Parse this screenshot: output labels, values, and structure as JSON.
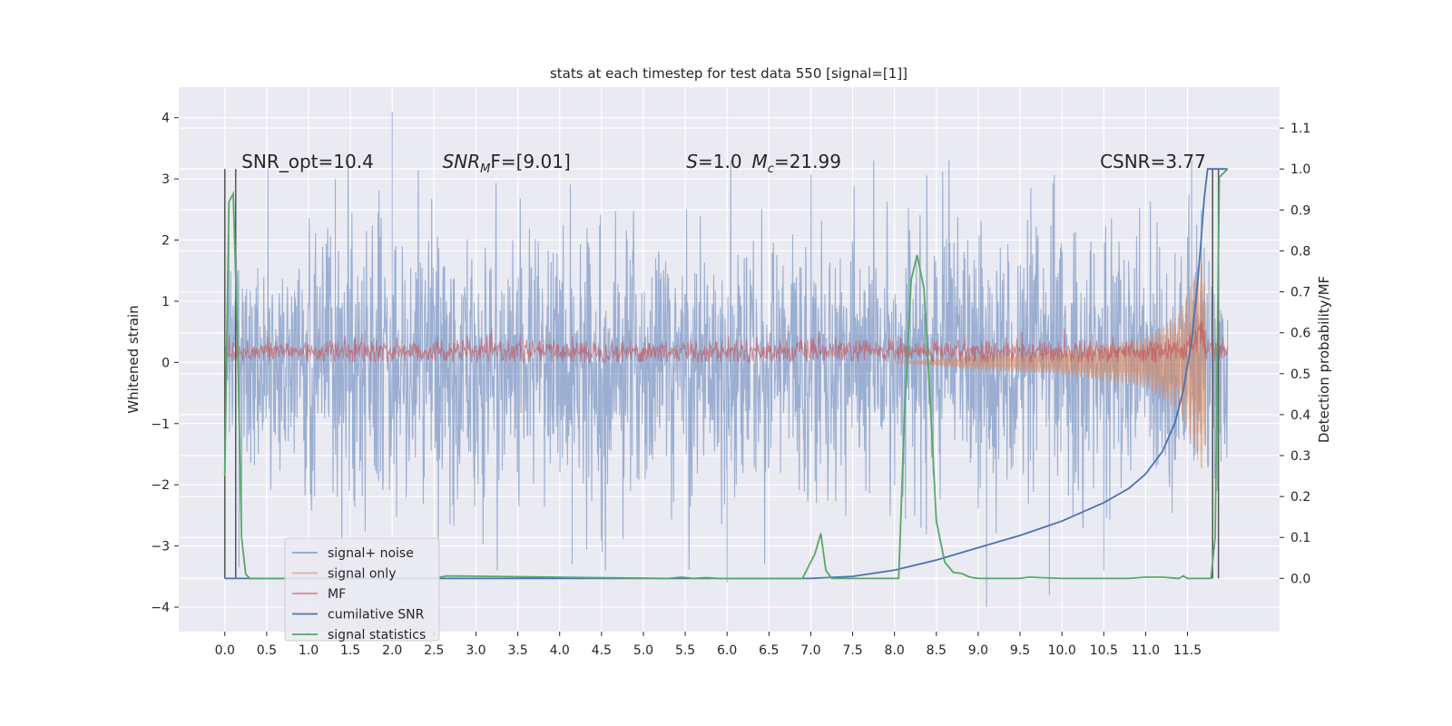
{
  "chart_data": {
    "type": "line",
    "title": "stats at each timestep for test data 550 [signal=[1]]",
    "ylabel": "Whitened strain",
    "y2label": "Detection probability/MF",
    "xlim": [
      -0.55,
      12.6
    ],
    "ylim": [
      -4.4,
      4.5
    ],
    "y2lim": [
      -0.13,
      1.2
    ],
    "x_ticks": [
      0,
      0.5,
      1,
      1.5,
      2,
      2.5,
      3,
      3.5,
      4,
      4.5,
      5,
      5.5,
      6,
      6.5,
      7,
      7.5,
      8,
      8.5,
      9,
      9.5,
      10,
      10.5,
      11,
      11.5
    ],
    "x_tick_labels": [
      "0.0",
      "0.5",
      "1.0",
      "1.5",
      "2.0",
      "2.5",
      "3.0",
      "3.5",
      "4.0",
      "4.5",
      "5.0",
      "5.5",
      "6.0",
      "6.5",
      "7.0",
      "7.5",
      "8.0",
      "8.5",
      "9.0",
      "9.5",
      "10.0",
      "10.5",
      "11.0",
      "11.5"
    ],
    "y_ticks": [
      -4,
      -3,
      -2,
      -1,
      0,
      1,
      2,
      3,
      4
    ],
    "y_tick_labels": [
      "−4",
      "−3",
      "−2",
      "−1",
      "0",
      "1",
      "2",
      "3",
      "4"
    ],
    "y2_ticks": [
      0,
      0.1,
      0.2,
      0.3,
      0.4,
      0.5,
      0.6,
      0.7,
      0.8,
      0.9,
      1.0,
      1.1
    ],
    "y2_tick_labels": [
      "0.0",
      "0.1",
      "0.2",
      "0.3",
      "0.4",
      "0.5",
      "0.6",
      "0.7",
      "0.8",
      "0.9",
      "1.0",
      "1.1"
    ],
    "grid": true,
    "legend_position": "lower-left",
    "annotations": [
      {
        "x": 0.2,
        "y2": 1.0,
        "text": "SNR_opt=10.4"
      },
      {
        "x": 2.6,
        "y2": 1.0,
        "text": "SNR_MF=[9.01]",
        "parts": [
          "SNR",
          "M",
          "F=[9.01]"
        ]
      },
      {
        "x": 5.6,
        "y2": 1.0,
        "text": "S=1.0",
        "parts": [
          "S",
          "=1.0"
        ]
      },
      {
        "x": 6.6,
        "y2": 1.0,
        "text": "M_c=21.99",
        "parts": [
          "M",
          "c",
          "=21.99"
        ]
      },
      {
        "x": 10.4,
        "y2": 1.0,
        "text": "CSNR=3.77"
      }
    ],
    "series": [
      {
        "name": "signal+ noise",
        "axis": "left",
        "color": "#4c72b0",
        "style": "noise strain, amplitude ~1.3 (extremes to about +4.1 / -4.0)",
        "peaks": [
          [
            0.05,
            2.1
          ],
          [
            0.17,
            -3.35
          ],
          [
            1.32,
            3.0
          ],
          [
            2.0,
            4.1
          ],
          [
            4.15,
            -3.3
          ],
          [
            6.0,
            -3.6
          ],
          [
            9.1,
            -4.0
          ],
          [
            9.85,
            -3.8
          ],
          [
            10.5,
            -3.4
          ],
          [
            11.55,
            3.3
          ]
        ]
      },
      {
        "name": "signal only",
        "axis": "left",
        "color": "#dd8452",
        "style": "chirp envelope growing to ~1.9 near merger",
        "envelope": [
          [
            8.0,
            0.0
          ],
          [
            9.0,
            0.12
          ],
          [
            10.0,
            0.2
          ],
          [
            11.0,
            0.4
          ],
          [
            11.4,
            0.8
          ],
          [
            11.6,
            1.5
          ],
          [
            11.7,
            1.9
          ],
          [
            11.72,
            0.0
          ]
        ]
      },
      {
        "name": "MF",
        "axis": "left",
        "color": "#c44e52",
        "style": "matched-filter output, band ~0 to 0.4 with spike to 1.0 near 11.6"
      },
      {
        "name": "cumilative SNR",
        "axis": "right",
        "color": "#4c72b0",
        "x": [
          0,
          7.0,
          7.5,
          8.0,
          8.5,
          9.0,
          9.5,
          10.0,
          10.5,
          10.8,
          11.0,
          11.2,
          11.35,
          11.45,
          11.55,
          11.62,
          11.66,
          11.7,
          11.74,
          11.76,
          11.8,
          11.9,
          11.98
        ],
        "y": [
          0,
          0,
          0.005,
          0.02,
          0.045,
          0.075,
          0.105,
          0.14,
          0.185,
          0.22,
          0.255,
          0.31,
          0.38,
          0.46,
          0.58,
          0.72,
          0.82,
          0.93,
          1.0,
          1.0,
          1.0,
          1.0,
          1.0
        ]
      },
      {
        "name": "signal statistics",
        "axis": "right",
        "color": "#55a868",
        "x": [
          0,
          0.05,
          0.1,
          0.15,
          0.2,
          0.25,
          0.3,
          0.35,
          2.5,
          2.65,
          5.3,
          5.45,
          5.6,
          5.75,
          5.9,
          6.9,
          7.05,
          7.12,
          7.18,
          7.25,
          8.05,
          8.12,
          8.2,
          8.27,
          8.35,
          8.43,
          8.5,
          8.6,
          8.7,
          8.8,
          8.9,
          9.0,
          9.5,
          9.6,
          10.0,
          10.8,
          11.0,
          11.2,
          11.4,
          11.45,
          11.5,
          11.78,
          11.83,
          11.88,
          11.93,
          11.98
        ],
        "y": [
          0.25,
          0.92,
          0.94,
          0.6,
          0.1,
          0.01,
          0.0,
          0.0,
          0.0,
          0.006,
          0.0,
          0.003,
          0.0,
          0.002,
          0.0,
          0.0,
          0.06,
          0.11,
          0.02,
          0.0,
          0.0,
          0.4,
          0.73,
          0.79,
          0.71,
          0.42,
          0.14,
          0.04,
          0.015,
          0.012,
          0.003,
          0.0,
          0.0,
          0.003,
          0.0,
          0.0,
          0.003,
          0.003,
          0.0,
          0.006,
          0.0,
          0.0,
          0.1,
          0.98,
          0.99,
          1.0
        ]
      }
    ],
    "vertical_lines": [
      {
        "axis": "right",
        "x": 0.0,
        "y_range": [
          0.0,
          1.0
        ],
        "color": "#555555"
      },
      {
        "axis": "right",
        "x": 0.13,
        "y_range": [
          0.0,
          1.0
        ],
        "color": "#555555"
      },
      {
        "axis": "right",
        "x": 11.8,
        "y_range": [
          0.0,
          1.0
        ],
        "color": "#555555"
      },
      {
        "axis": "right",
        "x": 11.87,
        "y_range": [
          0.0,
          1.0
        ],
        "color": "#555555"
      }
    ]
  }
}
